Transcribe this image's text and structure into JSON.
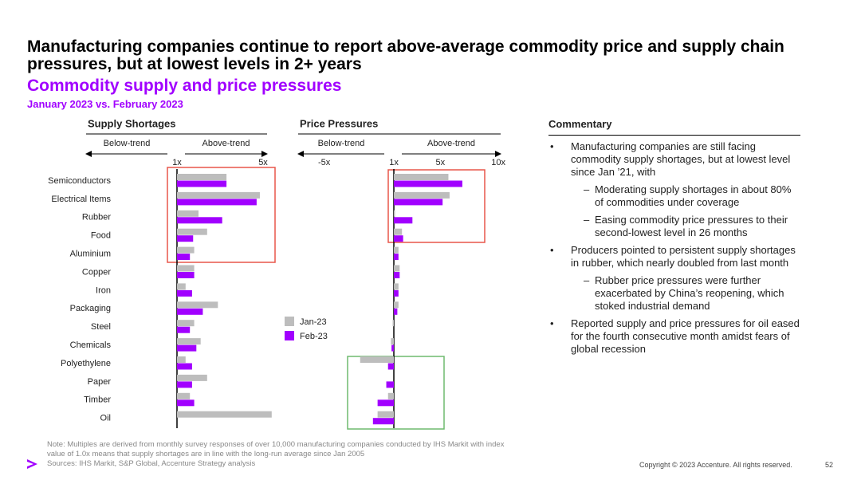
{
  "header": {
    "title": "Manufacturing companies continue to report above-average commodity price and supply chain pressures, but at lowest levels in 2+ years",
    "subtitle": "Commodity supply and price pressures",
    "period": "January 2023 vs. February 2023"
  },
  "chart_data": [
    {
      "type": "bar",
      "orientation": "horizontal",
      "title": "Supply Shortages",
      "below_label": "Below-trend",
      "above_label": "Above-trend",
      "categories": [
        "Semiconductors",
        "Electrical Items",
        "Rubber",
        "Food",
        "Aluminium",
        "Copper",
        "Iron",
        "Packaging",
        "Steel",
        "Chemicals",
        "Polyethylene",
        "Paper",
        "Timber",
        "Oil"
      ],
      "series": [
        {
          "color": "#bdbdbd",
          "values": [
            3.3,
            4.85,
            2.0,
            2.4,
            1.8,
            1.8,
            1.4,
            2.9,
            1.8,
            2.1,
            1.4,
            2.4,
            1.6,
            5.4
          ]
        },
        {
          "color": "#a100ff",
          "values": [
            3.3,
            4.7,
            3.1,
            1.75,
            1.6,
            1.8,
            1.7,
            2.2,
            1.6,
            1.9,
            1.7,
            1.7,
            1.8,
            null
          ]
        }
      ],
      "xlim": [
        -3,
        5.5
      ],
      "xticks": [
        {
          "value": 1,
          "label": "1x"
        },
        {
          "value": 5,
          "label": "5x"
        }
      ]
    },
    {
      "type": "bar",
      "orientation": "horizontal",
      "title": "Price Pressures",
      "below_label": "Below-trend",
      "above_label": "Above-trend",
      "series": [
        {
          "name": "Jan-23",
          "color": "#bdbdbd",
          "values": [
            5.7,
            5.8,
            1.1,
            1.7,
            1.4,
            1.5,
            1.4,
            1.4,
            0.9,
            0.75,
            -1.9,
            1.0,
            0.5,
            -0.4
          ]
        },
        {
          "name": "Feb-23",
          "color": "#a100ff",
          "values": [
            6.9,
            5.2,
            2.6,
            1.8,
            1.4,
            1.5,
            1.4,
            1.3,
            1.0,
            0.8,
            0.5,
            0.35,
            -0.4,
            -0.8
          ]
        }
      ],
      "xlim": [
        -7.2,
        10.2
      ],
      "xticks": [
        {
          "value": -5,
          "label": "-5x"
        },
        {
          "value": 1,
          "label": "1x"
        },
        {
          "value": 5,
          "label": "5x"
        },
        {
          "value": 10,
          "label": "10x"
        }
      ]
    }
  ],
  "commentary": {
    "heading": "Commentary",
    "items": [
      {
        "text": "Manufacturing companies are still facing commodity supply shortages, but at lowest level since Jan ’21, with",
        "subitems": [
          "Moderating supply shortages in about 80% of commodities under coverage",
          "Easing commodity price pressures to their second-lowest level in 26 months"
        ]
      },
      {
        "text": "Producers pointed to persistent supply shortages in rubber, which nearly doubled from last month",
        "subitems": [
          "Rubber price pressures were further exacerbated by China’s reopening, which stoked industrial demand"
        ]
      },
      {
        "text": "Reported supply and price pressures for oil eased for the fourth consecutive month amidst fears of global recession",
        "subitems": []
      }
    ]
  },
  "footer": {
    "note": "Note: Multiples are derived from monthly survey responses of over 10,000 manufacturing companies conducted by IHS Markit with index value of 1.0x means that supply shortages are in line with the long-run average since Jan 2005",
    "sources": "Sources: IHS Markit, S&P Global, Accenture Strategy analysis",
    "copyright": "Copyright © 2023 Accenture. All rights reserved.",
    "page": "52"
  }
}
